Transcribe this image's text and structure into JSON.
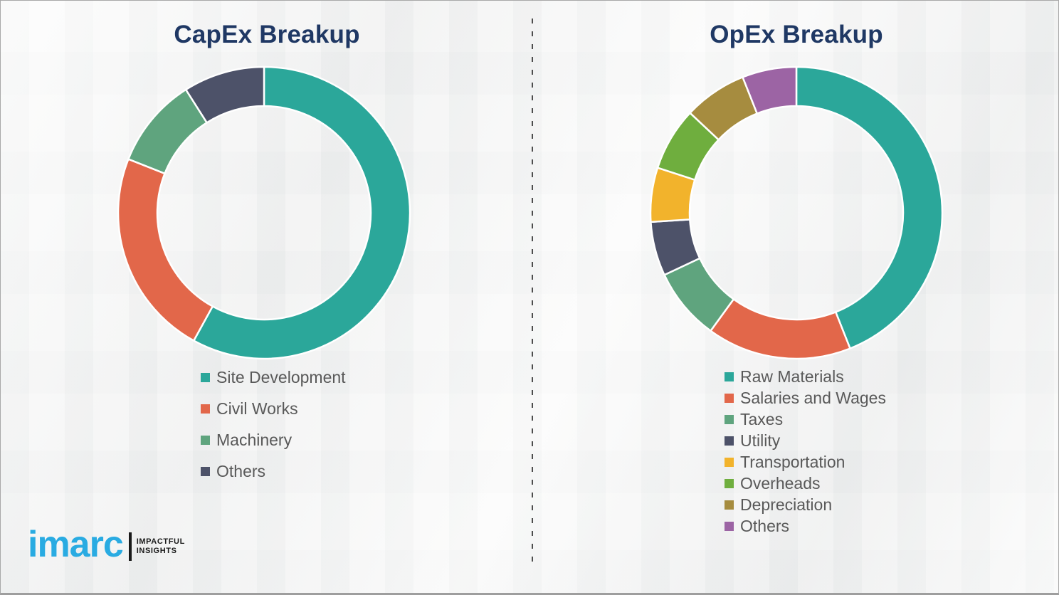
{
  "page": {
    "background_color": "#f4f4f3",
    "border_color": "#a8a8a8",
    "divider_color": "#4d4d4d",
    "title_color": "#1F3864",
    "legend_text_color": "#595959"
  },
  "branding": {
    "logo_text": "imarc",
    "logo_color": "#29ABE2",
    "tagline_line1": "IMPACTFUL",
    "tagline_line2": "INSIGHTS",
    "tagline_color": "#1a1a1a"
  },
  "chart_data": [
    {
      "type": "pie",
      "subtype": "donut",
      "title": "CapEx Breakup",
      "unit": "%",
      "values_estimated_from_arc_angles": true,
      "categories": [
        "Site Development",
        "Civil Works",
        "Machinery",
        "Others"
      ],
      "values": [
        58,
        23,
        10,
        9
      ],
      "colors": [
        "#2BA79A",
        "#E2674A",
        "#5FA47E",
        "#4D5269"
      ],
      "start_angle_deg": 0,
      "direction": "clockwise",
      "legend_position": "below-chart-left"
    },
    {
      "type": "pie",
      "subtype": "donut",
      "title": "OpEx Breakup",
      "unit": "%",
      "values_estimated_from_arc_angles": true,
      "categories": [
        "Raw Materials",
        "Salaries and Wages",
        "Taxes",
        "Utility",
        "Transportation",
        "Overheads",
        "Depreciation",
        "Others"
      ],
      "values": [
        44,
        16,
        8,
        6,
        6,
        7,
        7,
        6
      ],
      "colors": [
        "#2BA79A",
        "#E2674A",
        "#5FA47E",
        "#4D5269",
        "#F2B32C",
        "#6FAE3E",
        "#A68C3F",
        "#9C64A4"
      ],
      "start_angle_deg": 0,
      "direction": "clockwise",
      "legend_position": "below-chart-left"
    }
  ]
}
